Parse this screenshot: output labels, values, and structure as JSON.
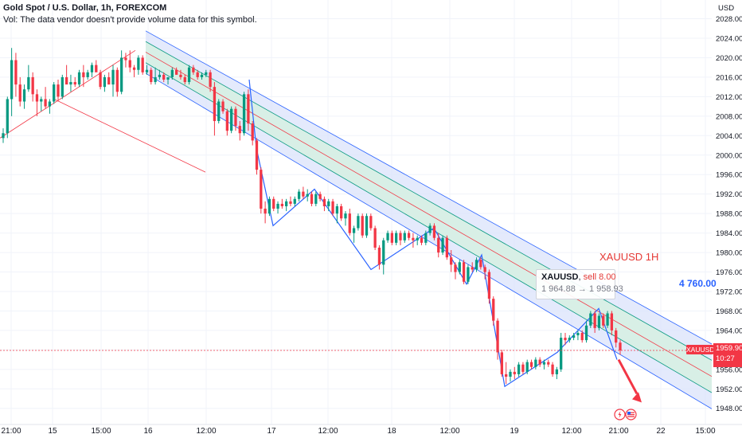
{
  "header": {
    "title": "Gold Spot / U.S. Dollar, 1h, FOREXCOM",
    "vol_note": "Vol: The data vendor doesn't provide volume data for this symbol."
  },
  "price_axis": {
    "currency": "USD",
    "ticks": [
      "2028.00",
      "2024.00",
      "2020.00",
      "2016.00",
      "2012.00",
      "2008.00",
      "2004.00",
      "2000.00",
      "1996.00",
      "1992.00",
      "1988.00",
      "1984.00",
      "1980.00",
      "1976.00",
      "1972.00",
      "1968.00",
      "1964.00",
      "1960.00",
      "1956.00",
      "1952.00",
      "1948.00"
    ]
  },
  "time_axis": {
    "labels": [
      "21:00",
      "15",
      "15:00",
      "16",
      "12:00",
      "17",
      "12:00",
      "18",
      "12:00",
      "19",
      "12:00",
      "21:00",
      "22",
      "15:00"
    ]
  },
  "chart_data": {
    "type": "candlestick",
    "symbol": "XAUUSD",
    "timeframe": "1h",
    "source": "FOREXCOM",
    "ylim": [
      1945.5,
      2031
    ],
    "current_price": "1959.90",
    "countdown": "10:27",
    "note_values": {
      "channel_label": "XAUUSD 1H",
      "blue_value": "4 760.00"
    },
    "trade": {
      "symbol": "XAUUSD",
      "side": "sell 8.00",
      "entry": "1 964.88",
      "target": "1 958.93",
      "arrow": "→"
    },
    "candles": [
      [
        2003.5,
        2005.5,
        2002.5,
        2004.5
      ],
      [
        2004.5,
        2012.0,
        2003.5,
        2011.5
      ],
      [
        2011.5,
        2022.0,
        2008.0,
        2019.5
      ],
      [
        2019.5,
        2021.0,
        2012.0,
        2014.5
      ],
      [
        2014.5,
        2016.0,
        2010.0,
        2011.0
      ],
      [
        2011.0,
        2014.5,
        2009.5,
        2013.5
      ],
      [
        2013.5,
        2018.5,
        2013.0,
        2016.0
      ],
      [
        2016.0,
        2017.0,
        2011.0,
        2012.5
      ],
      [
        2012.5,
        2013.5,
        2008.0,
        2011.0
      ],
      [
        2011.0,
        2012.0,
        2009.0,
        2011.5
      ],
      [
        2011.5,
        2014.0,
        2009.5,
        2010.0
      ],
      [
        2010.0,
        2011.5,
        2008.5,
        2011.0
      ],
      [
        2011.0,
        2015.0,
        2010.5,
        2014.5
      ],
      [
        2014.5,
        2015.5,
        2011.0,
        2012.0
      ],
      [
        2012.0,
        2016.5,
        2011.5,
        2016.0
      ],
      [
        2016.0,
        2018.5,
        2015.0,
        2014.5
      ],
      [
        2014.5,
        2016.5,
        2013.0,
        2015.0
      ],
      [
        2015.0,
        2016.0,
        2014.0,
        2014.5
      ],
      [
        2014.5,
        2017.5,
        2014.0,
        2017.0
      ],
      [
        2017.0,
        2018.5,
        2014.0,
        2016.0
      ],
      [
        2016.0,
        2017.5,
        2015.5,
        2017.0
      ],
      [
        2017.0,
        2019.0,
        2016.0,
        2018.5
      ],
      [
        2018.5,
        2019.5,
        2017.5,
        2017.0
      ],
      [
        2017.0,
        2017.5,
        2013.5,
        2014.0
      ],
      [
        2014.0,
        2016.5,
        2013.0,
        2016.0
      ],
      [
        2016.0,
        2017.0,
        2014.5,
        2014.5
      ],
      [
        2014.5,
        2018.5,
        2012.0,
        2017.5
      ],
      [
        2017.5,
        2018.0,
        2012.0,
        2013.0
      ],
      [
        2013.0,
        2021.5,
        2012.5,
        2020.0
      ],
      [
        2020.0,
        2021.0,
        2018.0,
        2019.5
      ],
      [
        2019.5,
        2021.5,
        2017.0,
        2018.0
      ],
      [
        2018.0,
        2018.5,
        2016.0,
        2017.5
      ],
      [
        2017.5,
        2020.5,
        2016.5,
        2020.0
      ],
      [
        2020.0,
        2020.5,
        2016.5,
        2017.0
      ],
      [
        2017.0,
        2018.5,
        2016.5,
        2017.5
      ],
      [
        2017.5,
        2018.0,
        2014.5,
        2015.0
      ],
      [
        2015.0,
        2018.0,
        2014.5,
        2016.0
      ],
      [
        2016.0,
        2017.5,
        2015.5,
        2016.5
      ],
      [
        2016.5,
        2017.0,
        2015.0,
        2015.5
      ],
      [
        2015.5,
        2016.0,
        2014.5,
        2016.0
      ],
      [
        2016.0,
        2018.0,
        2015.5,
        2017.5
      ],
      [
        2017.5,
        2018.0,
        2016.5,
        2016.5
      ],
      [
        2016.5,
        2017.5,
        2015.5,
        2016.0
      ],
      [
        2016.0,
        2016.5,
        2014.5,
        2015.0
      ],
      [
        2015.0,
        2018.5,
        2014.5,
        2018.0
      ],
      [
        2018.0,
        2018.5,
        2016.5,
        2017.0
      ],
      [
        2017.0,
        2017.5,
        2015.5,
        2016.0
      ],
      [
        2016.0,
        2017.0,
        2015.5,
        2016.5
      ],
      [
        2016.5,
        2017.5,
        2016.0,
        2017.0
      ],
      [
        2017.0,
        2017.5,
        2013.0,
        2014.0
      ],
      [
        2014.0,
        2015.0,
        2004.0,
        2007.0
      ],
      [
        2007.0,
        2011.5,
        2006.5,
        2011.0
      ],
      [
        2011.0,
        2011.5,
        2008.5,
        2009.0
      ],
      [
        2009.0,
        2009.5,
        2004.0,
        2005.0
      ],
      [
        2005.0,
        2010.0,
        2004.5,
        2009.5
      ],
      [
        2009.5,
        2010.0,
        2005.0,
        2006.0
      ],
      [
        2006.0,
        2007.0,
        2003.0,
        2004.5
      ],
      [
        2004.5,
        2013.0,
        2004.0,
        2012.5
      ],
      [
        2012.5,
        2013.5,
        2005.0,
        2006.5
      ],
      [
        2006.5,
        2007.0,
        2002.0,
        2003.0
      ],
      [
        2003.0,
        2003.5,
        1996.0,
        1997.0
      ],
      [
        1997.0,
        1997.5,
        1988.0,
        1989.0
      ],
      [
        1989.0,
        1990.5,
        1986.0,
        1988.0
      ],
      [
        1988.0,
        1991.5,
        1987.5,
        1991.0
      ],
      [
        1991.0,
        1991.5,
        1988.5,
        1989.0
      ],
      [
        1989.0,
        1990.5,
        1988.0,
        1990.0
      ],
      [
        1990.0,
        1991.0,
        1989.0,
        1989.5
      ],
      [
        1989.5,
        1991.0,
        1988.5,
        1990.5
      ],
      [
        1990.5,
        1991.5,
        1989.5,
        1990.0
      ],
      [
        1990.0,
        1991.5,
        1989.5,
        1991.0
      ],
      [
        1991.0,
        1993.0,
        1990.5,
        1992.5
      ],
      [
        1992.5,
        1993.5,
        1991.0,
        1991.5
      ],
      [
        1991.5,
        1993.0,
        1990.5,
        1992.0
      ],
      [
        1992.0,
        1992.5,
        1989.5,
        1990.0
      ],
      [
        1990.0,
        1992.5,
        1989.5,
        1992.0
      ],
      [
        1992.0,
        1992.5,
        1990.5,
        1991.0
      ],
      [
        1991.0,
        1991.5,
        1988.5,
        1989.5
      ],
      [
        1989.5,
        1991.0,
        1988.5,
        1990.5
      ],
      [
        1990.5,
        1991.0,
        1987.5,
        1988.0
      ],
      [
        1988.0,
        1990.0,
        1986.0,
        1989.5
      ],
      [
        1989.5,
        1990.0,
        1986.5,
        1987.0
      ],
      [
        1987.0,
        1988.5,
        1985.5,
        1988.0
      ],
      [
        1988.0,
        1989.0,
        1983.5,
        1984.0
      ],
      [
        1984.0,
        1985.5,
        1982.0,
        1985.0
      ],
      [
        1985.0,
        1988.0,
        1984.5,
        1987.5
      ],
      [
        1987.5,
        1988.0,
        1983.0,
        1983.5
      ],
      [
        1983.5,
        1988.0,
        1983.0,
        1987.5
      ],
      [
        1987.5,
        1988.0,
        1984.5,
        1985.0
      ],
      [
        1985.0,
        1985.5,
        1980.5,
        1981.0
      ],
      [
        1981.0,
        1981.5,
        1976.5,
        1977.5
      ],
      [
        1977.5,
        1983.0,
        1975.5,
        1982.5
      ],
      [
        1982.5,
        1984.5,
        1982.0,
        1984.0
      ],
      [
        1984.0,
        1984.5,
        1981.5,
        1982.0
      ],
      [
        1982.0,
        1984.5,
        1981.5,
        1984.0
      ],
      [
        1984.0,
        1984.5,
        1981.5,
        1982.5
      ],
      [
        1982.5,
        1984.5,
        1982.0,
        1984.0
      ],
      [
        1984.0,
        1984.5,
        1982.5,
        1983.0
      ],
      [
        1983.0,
        1984.0,
        1981.0,
        1982.5
      ],
      [
        1982.5,
        1983.5,
        1981.5,
        1983.0
      ],
      [
        1983.0,
        1983.5,
        1981.5,
        1982.0
      ],
      [
        1982.0,
        1984.5,
        1981.5,
        1984.0
      ],
      [
        1984.0,
        1986.0,
        1983.5,
        1985.5
      ],
      [
        1985.5,
        1986.0,
        1982.5,
        1983.0
      ],
      [
        1983.0,
        1984.0,
        1979.0,
        1980.0
      ],
      [
        1980.0,
        1983.5,
        1979.5,
        1983.0
      ],
      [
        1983.0,
        1983.5,
        1978.5,
        1979.0
      ],
      [
        1979.0,
        1980.5,
        1976.0,
        1977.5
      ],
      [
        1977.5,
        1978.0,
        1974.5,
        1976.0
      ],
      [
        1976.0,
        1978.5,
        1975.5,
        1978.0
      ],
      [
        1978.0,
        1978.5,
        1973.5,
        1974.0
      ],
      [
        1974.0,
        1977.5,
        1973.5,
        1977.0
      ],
      [
        1977.0,
        1978.0,
        1976.0,
        1976.5
      ],
      [
        1976.5,
        1979.0,
        1976.0,
        1978.5
      ],
      [
        1978.5,
        1979.0,
        1976.5,
        1977.0
      ],
      [
        1977.0,
        1977.5,
        1974.5,
        1976.0
      ],
      [
        1976.0,
        1976.5,
        1969.5,
        1970.5
      ],
      [
        1970.5,
        1971.0,
        1965.0,
        1966.0
      ],
      [
        1966.0,
        1966.5,
        1958.0,
        1959.5
      ],
      [
        1959.5,
        1960.0,
        1954.5,
        1955.0
      ],
      [
        1955.0,
        1957.5,
        1953.0,
        1954.5
      ],
      [
        1954.5,
        1956.0,
        1953.5,
        1955.5
      ],
      [
        1955.5,
        1956.5,
        1954.0,
        1955.0
      ],
      [
        1955.0,
        1957.5,
        1954.5,
        1957.0
      ],
      [
        1957.0,
        1957.5,
        1955.0,
        1955.5
      ],
      [
        1955.5,
        1958.0,
        1955.0,
        1957.5
      ],
      [
        1957.5,
        1958.0,
        1956.0,
        1956.5
      ],
      [
        1956.5,
        1958.5,
        1956.0,
        1958.0
      ],
      [
        1958.0,
        1958.5,
        1956.5,
        1957.0
      ],
      [
        1957.0,
        1958.0,
        1956.0,
        1957.5
      ],
      [
        1957.5,
        1958.0,
        1956.5,
        1957.0
      ],
      [
        1957.0,
        1957.5,
        1954.5,
        1955.0
      ],
      [
        1955.0,
        1956.5,
        1954.0,
        1956.0
      ],
      [
        1956.0,
        1963.5,
        1955.5,
        1962.5
      ],
      [
        1962.5,
        1963.5,
        1961.0,
        1962.0
      ],
      [
        1962.0,
        1963.0,
        1961.5,
        1962.5
      ],
      [
        1962.5,
        1963.5,
        1962.0,
        1963.0
      ],
      [
        1963.0,
        1964.0,
        1962.0,
        1963.5
      ],
      [
        1963.5,
        1964.0,
        1961.5,
        1962.0
      ],
      [
        1962.0,
        1966.0,
        1961.5,
        1965.0
      ],
      [
        1965.0,
        1968.0,
        1964.5,
        1967.5
      ],
      [
        1967.5,
        1968.0,
        1963.5,
        1964.5
      ],
      [
        1964.5,
        1967.5,
        1964.0,
        1967.0
      ],
      [
        1967.0,
        1967.5,
        1964.5,
        1965.0
      ],
      [
        1965.0,
        1968.0,
        1964.5,
        1967.5
      ],
      [
        1967.5,
        1968.0,
        1963.0,
        1964.0
      ],
      [
        1964.0,
        1964.5,
        1960.5,
        1961.5
      ],
      [
        1961.5,
        1962.0,
        1959.0,
        1959.9
      ]
    ]
  },
  "colors": {
    "up": "#089981",
    "down": "#f23645",
    "channel_fill_outer": "#dbe3fb",
    "channel_fill_inner": "#d6efe3",
    "channel_edge": "#2962ff",
    "median": "#f23645",
    "inner_line": "#089981",
    "zigzag": "#2962ff",
    "current_price": "#f23645"
  }
}
